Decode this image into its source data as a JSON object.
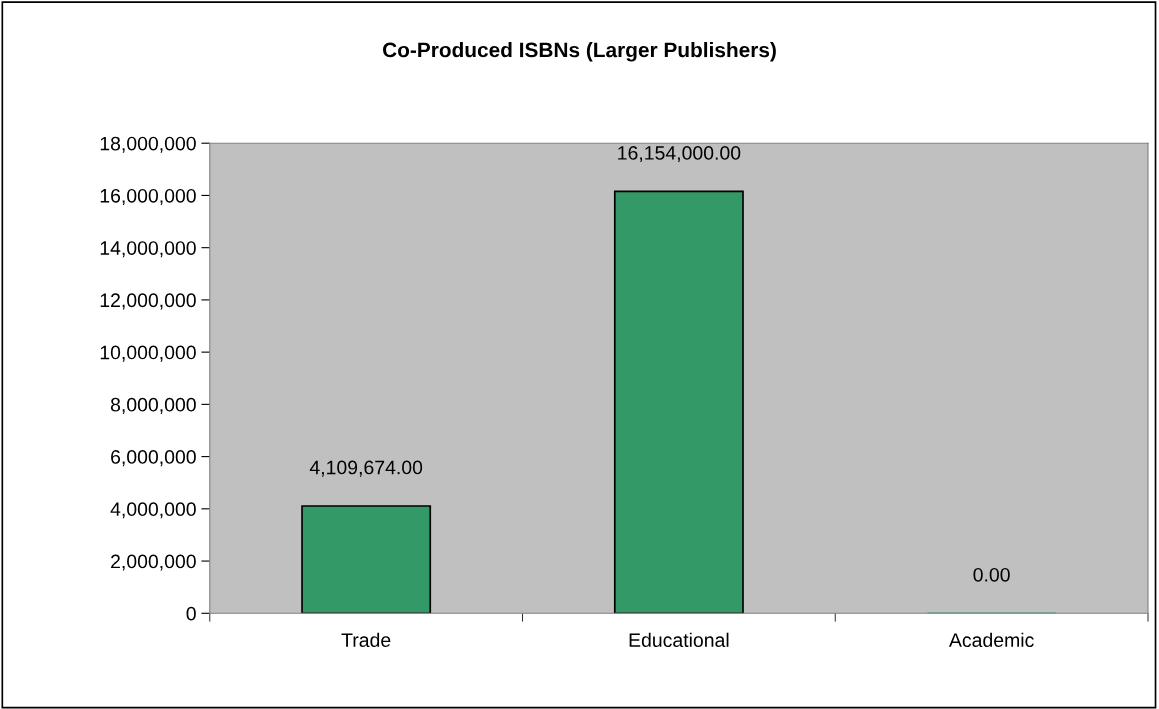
{
  "chart_data": {
    "type": "bar",
    "title": "Co-Produced ISBNs (Larger Publishers)",
    "categories": [
      "Trade",
      "Educational",
      "Academic"
    ],
    "values": [
      4109674,
      16154000,
      0
    ],
    "value_labels": [
      "4,109,674.00",
      "16,154,000.00",
      "0.00"
    ],
    "color": "#339966",
    "ylim": [
      0,
      18000000
    ],
    "yticks": [
      0,
      {
        "value": 2000000,
        "label": "2,000,000"
      },
      {
        "value": 4000000,
        "label": "4,000,000"
      },
      {
        "value": 6000000,
        "label": "6,000,000"
      },
      {
        "value": 8000000,
        "label": "8,000,000"
      },
      {
        "value": 10000000,
        "label": "10,000,000"
      },
      {
        "value": 12000000,
        "label": "12,000,000"
      },
      {
        "value": 14000000,
        "label": "14,000,000"
      },
      {
        "value": 16000000,
        "label": "16,000,000"
      },
      {
        "value": 18000000,
        "label": "18,000,000"
      }
    ],
    "grid": false,
    "legend": false
  }
}
